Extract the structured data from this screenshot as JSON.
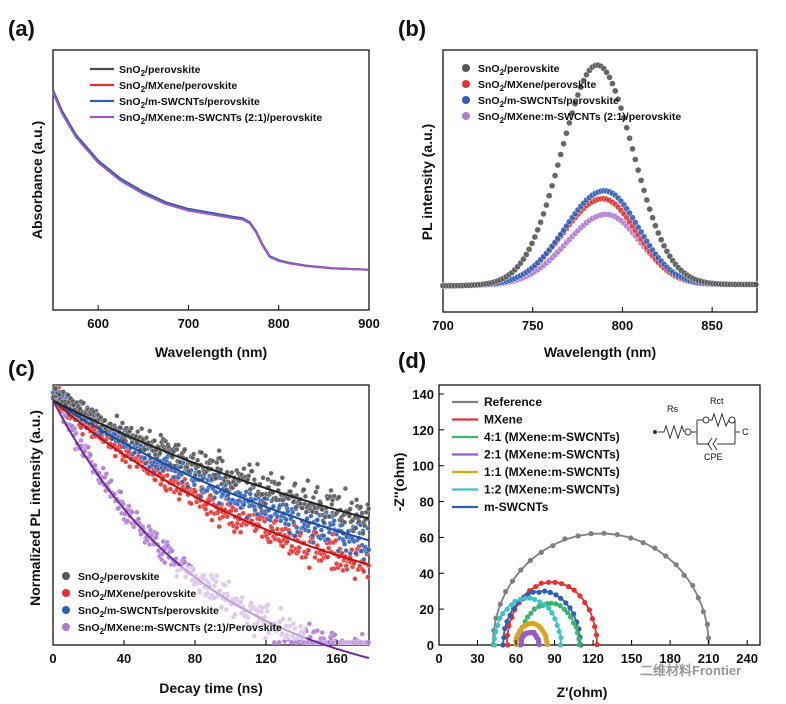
{
  "panels": {
    "a": {
      "letter": "(a)"
    },
    "b": {
      "letter": "(b)"
    },
    "c": {
      "letter": "(c)"
    },
    "d": {
      "letter": "(d)"
    }
  },
  "watermark": "二维材料Frontier",
  "chart_data": [
    {
      "panel": "(a)",
      "type": "line",
      "xlabel": "Wavelength (nm)",
      "ylabel": "Absorbance (a.u.)",
      "xlim": [
        550,
        900
      ],
      "ylim": [
        0,
        1
      ],
      "xticks": [
        "600",
        "700",
        "800",
        "900"
      ],
      "legend_position": "top-right",
      "series": [
        {
          "name": "SnO2/perovskite",
          "color": "#4a4a4a",
          "offset": 0.006
        },
        {
          "name": "SnO2/MXene/perovskite",
          "color": "#e8302c",
          "offset": 0.0
        },
        {
          "name": "SnO2/m-SWCNTs/perovskite",
          "color": "#2e5fb8",
          "offset": 0.003
        },
        {
          "name": "SnO2/MXene:m-SWCNTs (2:1)/perovskite",
          "color": "#9b59c6",
          "offset": -0.004
        }
      ],
      "x": [
        550,
        560,
        575,
        600,
        625,
        650,
        675,
        700,
        725,
        750,
        760,
        768,
        775,
        782,
        790,
        800,
        812,
        830,
        860,
        900
      ],
      "y": [
        0.84,
        0.76,
        0.67,
        0.57,
        0.5,
        0.45,
        0.41,
        0.385,
        0.37,
        0.355,
        0.35,
        0.335,
        0.3,
        0.25,
        0.205,
        0.19,
        0.18,
        0.17,
        0.16,
        0.155
      ]
    },
    {
      "panel": "(b)",
      "type": "scatter",
      "xlabel": "Wavelength (nm)",
      "ylabel": "PL intensity (a.u.)",
      "xlim": [
        700,
        875
      ],
      "ylim": [
        0,
        1
      ],
      "xticks": [
        "700",
        "750",
        "800",
        "850"
      ],
      "legend_position": "top-right",
      "series": [
        {
          "name": "SnO2/perovskite",
          "color": "#555555",
          "peak": 786,
          "amp": 0.84,
          "sl": 20,
          "sr": 20
        },
        {
          "name": "SnO2/MXene/perovskite",
          "color": "#e8302c",
          "peak": 789,
          "amp": 0.33,
          "sl": 22,
          "sr": 19
        },
        {
          "name": "SnO2/m-SWCNTs/perovskite",
          "color": "#2e5fb8",
          "peak": 790,
          "amp": 0.36,
          "sl": 22,
          "sr": 19
        },
        {
          "name": "SnO2/MXene:m-SWCNTs (2:1)/perovskite",
          "color": "#b07ad0",
          "peak": 791,
          "amp": 0.27,
          "sl": 22,
          "sr": 19
        }
      ]
    },
    {
      "panel": "(c)",
      "type": "scatter",
      "xlabel": "Decay time (ns)",
      "ylabel": "Normalized PL intensity (a.u.)",
      "xlim": [
        0,
        178
      ],
      "ylim": [
        0,
        1
      ],
      "xticks": [
        "0",
        "40",
        "80",
        "120",
        "160"
      ],
      "legend_position": "bottom-left",
      "series": [
        {
          "name": "SnO2/perovskite",
          "color": "#555555",
          "tau": 270
        },
        {
          "name": "SnO2/MXene/perovskite",
          "color": "#e8302c",
          "tau": 160
        },
        {
          "name": "SnO2/m-SWCNTs/perovskite",
          "color": "#2e5fb8",
          "tau": 210
        },
        {
          "name": "SnO2/MXene:m-SWCNTs (2:1)/Perovskite",
          "color": "#b07ad0",
          "tau": 100
        }
      ]
    },
    {
      "panel": "(d)",
      "type": "scatter",
      "xlabel": "Z'(ohm)",
      "ylabel": "-Z''(ohm)",
      "xlim": [
        0,
        250
      ],
      "ylim": [
        0,
        145
      ],
      "xticks": [
        "0",
        "30",
        "60",
        "90",
        "120",
        "150",
        "180",
        "210",
        "240"
      ],
      "yticks": [
        "0",
        "20",
        "40",
        "60",
        "80",
        "100",
        "120",
        "140"
      ],
      "legend_position": "top-left",
      "series": [
        {
          "name": "Reference",
          "color": "#7f7f7f",
          "center": 126,
          "radius": 84
        },
        {
          "name": "MXene",
          "color": "#e8302c",
          "center": 88,
          "radius": 35
        },
        {
          "name": "4:1 (MXene:m-SWCNTs)",
          "color": "#3cb371",
          "center": 86,
          "radius": 23
        },
        {
          "name": "2:1 (MXene:m-SWCNTs)",
          "color": "#9b59c6",
          "center": 71,
          "radius": 7
        },
        {
          "name": "1:1 (MXene:m-SWCNTs)",
          "color": "#d8a520",
          "center": 72,
          "radius": 12
        },
        {
          "name": "1:2 (MXene:m-SWCNTs)",
          "color": "#3cc4c4",
          "center": 69,
          "radius": 26
        },
        {
          "name": "m-SWCNTs",
          "color": "#2e5fb8",
          "center": 80,
          "radius": 30
        }
      ],
      "circuit_labels": {
        "rs": "Rs",
        "rct": "Rct",
        "cpe": "CPE"
      }
    }
  ]
}
